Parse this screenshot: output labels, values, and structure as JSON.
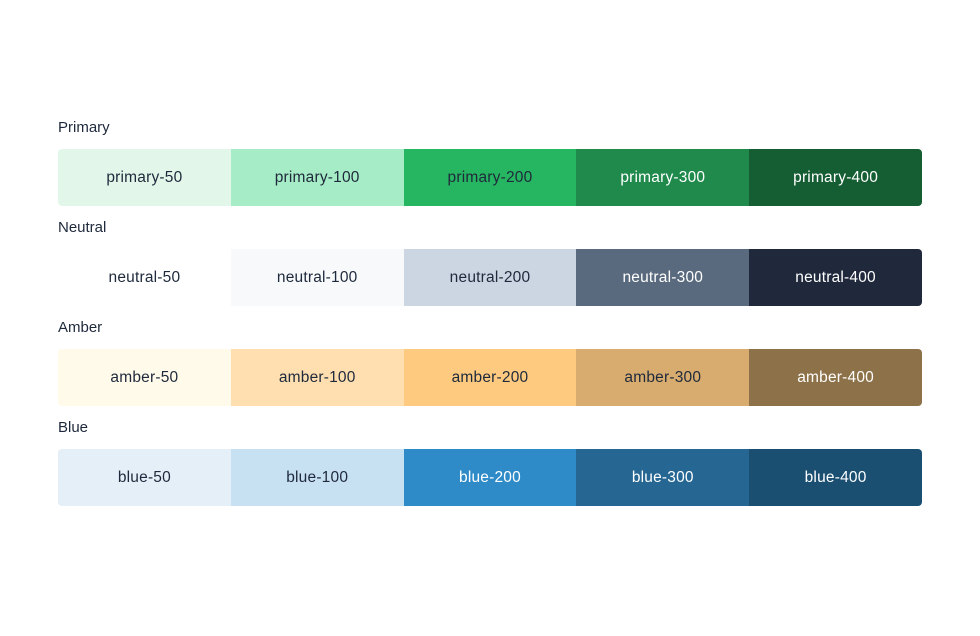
{
  "palettes": [
    {
      "label": "Primary",
      "swatches": [
        {
          "name": "primary-50",
          "bg": "#e2f7ea",
          "fg": "#1e293b"
        },
        {
          "name": "primary-100",
          "bg": "#a6ecc6",
          "fg": "#1e293b"
        },
        {
          "name": "primary-200",
          "bg": "#26b561",
          "fg": "#1e293b"
        },
        {
          "name": "primary-300",
          "bg": "#1f8a4c",
          "fg": "#ffffff"
        },
        {
          "name": "primary-400",
          "bg": "#155d33",
          "fg": "#ffffff"
        }
      ]
    },
    {
      "label": "Neutral",
      "swatches": [
        {
          "name": "neutral-50",
          "bg": "#ffffff",
          "fg": "#1e293b"
        },
        {
          "name": "neutral-100",
          "bg": "#f7f9fb",
          "fg": "#1e293b"
        },
        {
          "name": "neutral-200",
          "bg": "#ccd6e2",
          "fg": "#1e293b"
        },
        {
          "name": "neutral-300",
          "bg": "#5a6a7e",
          "fg": "#ffffff"
        },
        {
          "name": "neutral-400",
          "bg": "#1f293b",
          "fg": "#ffffff"
        }
      ]
    },
    {
      "label": "Amber",
      "swatches": [
        {
          "name": "amber-50",
          "bg": "#fffaea",
          "fg": "#1e293b"
        },
        {
          "name": "amber-100",
          "bg": "#ffdfb0",
          "fg": "#1e293b"
        },
        {
          "name": "amber-200",
          "bg": "#fdca80",
          "fg": "#1e293b"
        },
        {
          "name": "amber-300",
          "bg": "#d8ac6f",
          "fg": "#1e293b"
        },
        {
          "name": "amber-400",
          "bg": "#8d7148",
          "fg": "#ffffff"
        }
      ]
    },
    {
      "label": "Blue",
      "swatches": [
        {
          "name": "blue-50",
          "bg": "#e4eff8",
          "fg": "#1e293b"
        },
        {
          "name": "blue-100",
          "bg": "#c7e0f2",
          "fg": "#1e293b"
        },
        {
          "name": "blue-200",
          "bg": "#2e8bc8",
          "fg": "#ffffff"
        },
        {
          "name": "blue-300",
          "bg": "#266692",
          "fg": "#ffffff"
        },
        {
          "name": "blue-400",
          "bg": "#1b4f72",
          "fg": "#ffffff"
        }
      ]
    }
  ]
}
